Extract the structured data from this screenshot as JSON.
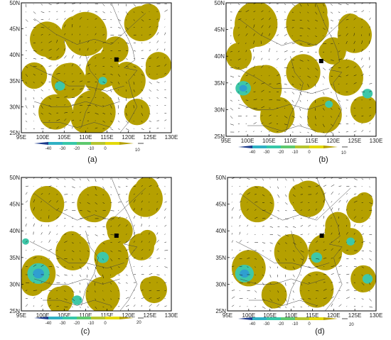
{
  "axes": {
    "lat_labels": [
      "25N",
      "30N",
      "35N",
      "40N",
      "45N",
      "50N"
    ],
    "lon_labels": [
      "95E",
      "100E",
      "105E",
      "110E",
      "115E",
      "120E",
      "125E",
      "130E"
    ],
    "lon_min": 95,
    "lon_max": 130,
    "lat_min": 25,
    "lat_max": 50
  },
  "colorbar": {
    "labels": [
      "-40",
      "-30",
      "-20",
      "-10",
      "0"
    ],
    "colors": [
      "#1b3b8c",
      "#2fb0c4",
      "#36c7a8",
      "#5ec96e",
      "#b6c52e",
      "#e2d90a",
      "#b5a000"
    ]
  },
  "colors": {
    "positive": "#b5a000",
    "negative_strong": "#3ec7a8",
    "negative_core": "#2f9fd0"
  },
  "site_marker": {
    "lon": 117.2,
    "lat": 39.1
  },
  "panels": [
    {
      "caption": "(a)",
      "ref_vector": "10",
      "positive_regions": [
        {
          "lon": 101,
          "lat": 43,
          "r": 4
        },
        {
          "lon": 110,
          "lat": 44,
          "r": 5
        },
        {
          "lon": 123,
          "lat": 46,
          "r": 4
        },
        {
          "lon": 98,
          "lat": 36,
          "r": 3
        },
        {
          "lon": 106,
          "lat": 35,
          "r": 4
        },
        {
          "lon": 114,
          "lat": 37,
          "r": 4
        },
        {
          "lon": 120,
          "lat": 35,
          "r": 4
        },
        {
          "lon": 103,
          "lat": 29,
          "r": 4
        },
        {
          "lon": 112,
          "lat": 29,
          "r": 5
        },
        {
          "lon": 122,
          "lat": 29,
          "r": 3
        },
        {
          "lon": 117,
          "lat": 41,
          "r": 3
        },
        {
          "lon": 127,
          "lat": 38,
          "r": 3
        }
      ],
      "negative_regions": [
        {
          "lon": 104,
          "lat": 34,
          "r": 1.2
        },
        {
          "lon": 114,
          "lat": 35,
          "r": 1.0
        }
      ]
    },
    {
      "caption": "(b)",
      "ref_vector": "10",
      "positive_regions": [
        {
          "lon": 102,
          "lat": 46,
          "r": 5
        },
        {
          "lon": 114,
          "lat": 46,
          "r": 5
        },
        {
          "lon": 125,
          "lat": 44,
          "r": 4
        },
        {
          "lon": 103,
          "lat": 34,
          "r": 5
        },
        {
          "lon": 113,
          "lat": 37,
          "r": 4
        },
        {
          "lon": 123,
          "lat": 36,
          "r": 4
        },
        {
          "lon": 107,
          "lat": 29,
          "r": 4
        },
        {
          "lon": 118,
          "lat": 29,
          "r": 4
        },
        {
          "lon": 127,
          "lat": 30,
          "r": 3
        },
        {
          "lon": 98,
          "lat": 40,
          "r": 3
        },
        {
          "lon": 120,
          "lat": 41,
          "r": 3
        }
      ],
      "negative_regions": [
        {
          "lon": 99,
          "lat": 34,
          "r": 1.8
        },
        {
          "lon": 128,
          "lat": 33,
          "r": 1.2
        },
        {
          "lon": 119,
          "lat": 31,
          "r": 0.9
        }
      ]
    },
    {
      "caption": "(c)",
      "ref_vector": "20",
      "positive_regions": [
        {
          "lon": 101,
          "lat": 45,
          "r": 4
        },
        {
          "lon": 112,
          "lat": 45,
          "r": 4
        },
        {
          "lon": 124,
          "lat": 46,
          "r": 4
        },
        {
          "lon": 99,
          "lat": 32,
          "r": 4
        },
        {
          "lon": 107,
          "lat": 36,
          "r": 4
        },
        {
          "lon": 116,
          "lat": 35,
          "r": 4
        },
        {
          "lon": 123,
          "lat": 37,
          "r": 3
        },
        {
          "lon": 104,
          "lat": 27,
          "r": 3
        },
        {
          "lon": 114,
          "lat": 28,
          "r": 4
        },
        {
          "lon": 126,
          "lat": 29,
          "r": 3
        },
        {
          "lon": 118,
          "lat": 40,
          "r": 3
        }
      ],
      "negative_regions": [
        {
          "lon": 99,
          "lat": 32,
          "r": 2.6
        },
        {
          "lon": 114,
          "lat": 35,
          "r": 1.4
        },
        {
          "lon": 108,
          "lat": 27,
          "r": 1.2
        },
        {
          "lon": 96,
          "lat": 38,
          "r": 0.8
        }
      ]
    },
    {
      "caption": "(d)",
      "ref_vector": "20",
      "positive_regions": [
        {
          "lon": 102,
          "lat": 45,
          "r": 4
        },
        {
          "lon": 114,
          "lat": 46,
          "r": 4
        },
        {
          "lon": 126,
          "lat": 44,
          "r": 3
        },
        {
          "lon": 100,
          "lat": 33,
          "r": 4
        },
        {
          "lon": 110,
          "lat": 36,
          "r": 4
        },
        {
          "lon": 118,
          "lat": 36,
          "r": 4
        },
        {
          "lon": 124,
          "lat": 38,
          "r": 3
        },
        {
          "lon": 106,
          "lat": 28,
          "r": 3
        },
        {
          "lon": 116,
          "lat": 29,
          "r": 4
        },
        {
          "lon": 127,
          "lat": 31,
          "r": 3
        },
        {
          "lon": 121,
          "lat": 41,
          "r": 3
        }
      ],
      "negative_regions": [
        {
          "lon": 99,
          "lat": 32,
          "r": 2.2
        },
        {
          "lon": 116,
          "lat": 35,
          "r": 1.3
        },
        {
          "lon": 128,
          "lat": 31,
          "r": 1.2
        },
        {
          "lon": 124,
          "lat": 38,
          "r": 1.0
        }
      ]
    }
  ]
}
